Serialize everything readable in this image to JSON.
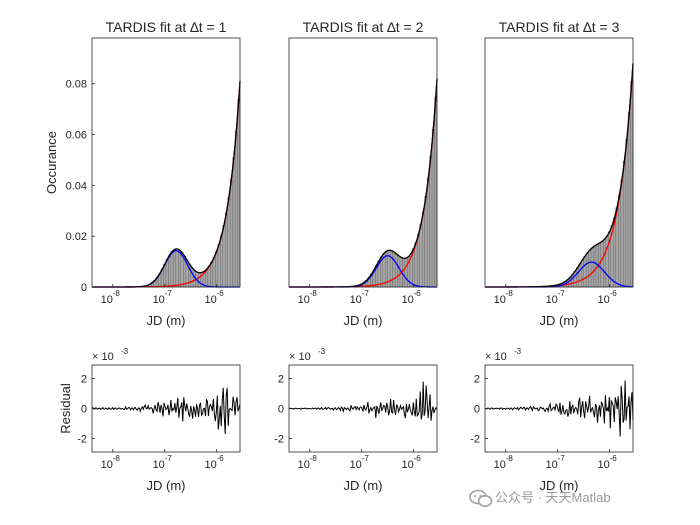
{
  "chart_data": [
    {
      "type": "histogram+line",
      "title": "TARDIS fit at ∆t = 1",
      "xlabel": "JD (m)",
      "ylabel": "Occurance",
      "xscale": "log",
      "xlim_exponent": [
        -8.4,
        -5.55
      ],
      "ylim": [
        0,
        0.098
      ],
      "yticks": [
        0,
        0.02,
        0.04,
        0.06,
        0.08
      ],
      "ytick_labels": [
        "0",
        "0.02",
        "0.04",
        "0.06",
        "0.08"
      ],
      "xtick_labels": [
        {
          "base": "10",
          "exp": "-8"
        },
        {
          "base": "10",
          "exp": "-7"
        },
        {
          "base": "10",
          "exp": "-6"
        }
      ],
      "xtick_exponents": [
        -8,
        -7,
        -6
      ],
      "components": {
        "blue_peak": {
          "center_log10": -6.78,
          "height": 0.0143,
          "sigma_log10": 0.22,
          "color": "#0000ff"
        },
        "red_tail": {
          "growth": 3.9,
          "color": "#ff0000"
        },
        "end_value": 0.081
      },
      "histogram_color": "#a6a6a6",
      "fit_color": "#000000",
      "grid": false
    },
    {
      "type": "histogram+line",
      "title": "TARDIS fit at ∆t = 2",
      "xlabel": "JD (m)",
      "ylabel": "",
      "xscale": "log",
      "xlim_exponent": [
        -8.4,
        -5.55
      ],
      "ylim": [
        0,
        0.098
      ],
      "xtick_labels": [
        {
          "base": "10",
          "exp": "-8"
        },
        {
          "base": "10",
          "exp": "-7"
        },
        {
          "base": "10",
          "exp": "-6"
        }
      ],
      "xtick_exponents": [
        -8,
        -7,
        -6
      ],
      "components": {
        "blue_peak": {
          "center_log10": -6.5,
          "height": 0.0123,
          "sigma_log10": 0.22,
          "color": "#0000ff"
        },
        "red_tail": {
          "growth": 3.9,
          "color": "#ff0000"
        },
        "end_value": 0.082
      },
      "histogram_color": "#a6a6a6",
      "fit_color": "#000000",
      "grid": false
    },
    {
      "type": "histogram+line",
      "title": "TARDIS fit at ∆t = 3",
      "xlabel": "JD (m)",
      "ylabel": "",
      "xscale": "log",
      "xlim_exponent": [
        -8.4,
        -5.55
      ],
      "ylim": [
        0,
        0.098
      ],
      "xtick_labels": [
        {
          "base": "10",
          "exp": "-8"
        },
        {
          "base": "10",
          "exp": "-7"
        },
        {
          "base": "10",
          "exp": "-6"
        }
      ],
      "xtick_exponents": [
        -8,
        -7,
        -6
      ],
      "components": {
        "blue_peak": {
          "center_log10": -6.35,
          "height": 0.0098,
          "sigma_log10": 0.25,
          "color": "#0000ff"
        },
        "red_tail": {
          "growth": 3.5,
          "color": "#ff0000"
        },
        "end_value": 0.088
      },
      "histogram_color": "#a6a6a6",
      "fit_color": "#000000",
      "grid": false
    },
    {
      "type": "line",
      "title": "",
      "xlabel": "JD (m)",
      "ylabel": "Residual",
      "xscale": "log",
      "xlim_exponent": [
        -8.4,
        -5.55
      ],
      "ylim": [
        -2.9,
        2.9
      ],
      "y_multiplier": {
        "base": "× 10",
        "exp": "-3"
      },
      "yticks": [
        -2,
        0,
        2
      ],
      "ytick_labels": [
        "-2",
        "0",
        "2"
      ],
      "xtick_labels": [
        {
          "base": "10",
          "exp": "-8"
        },
        {
          "base": "10",
          "exp": "-7"
        },
        {
          "base": "10",
          "exp": "-6"
        }
      ],
      "xtick_exponents": [
        -8,
        -7,
        -6
      ],
      "residual": {
        "x": [
          -8.4,
          -8.0,
          -7.6,
          -7.3,
          -7.1,
          -6.9,
          -6.7,
          -6.5,
          -6.3,
          -6.1,
          -5.95,
          -5.85,
          -5.75,
          -5.65,
          -5.55
        ],
        "amplitude": [
          0.05,
          0.07,
          0.12,
          0.3,
          0.45,
          0.6,
          0.9,
          0.7,
          0.6,
          0.9,
          1.4,
          2.6,
          1.8,
          1.5,
          0.8
        ]
      },
      "line_color": "#000000"
    },
    {
      "type": "line",
      "title": "",
      "xlabel": "JD (m)",
      "ylabel": "",
      "xscale": "log",
      "xlim_exponent": [
        -8.4,
        -5.55
      ],
      "ylim": [
        -2.9,
        2.9
      ],
      "y_multiplier": {
        "base": "× 10",
        "exp": "-3"
      },
      "yticks": [
        -2,
        0,
        2
      ],
      "ytick_labels": [
        "-2",
        "0",
        "2"
      ],
      "xtick_labels": [
        {
          "base": "10",
          "exp": "-8"
        },
        {
          "base": "10",
          "exp": "-7"
        },
        {
          "base": "10",
          "exp": "-6"
        }
      ],
      "xtick_exponents": [
        -8,
        -7,
        -6
      ],
      "residual": {
        "x": [
          -8.4,
          -8.0,
          -7.6,
          -7.3,
          -7.1,
          -6.9,
          -6.7,
          -6.5,
          -6.3,
          -6.1,
          -5.95,
          -5.85,
          -5.75,
          -5.65,
          -5.55
        ],
        "amplitude": [
          0.05,
          0.06,
          0.1,
          0.2,
          0.3,
          0.45,
          0.6,
          0.65,
          0.6,
          0.8,
          1.0,
          2.2,
          1.6,
          1.2,
          0.7
        ]
      },
      "line_color": "#000000"
    },
    {
      "type": "line",
      "title": "",
      "xlabel": "JD (m)",
      "ylabel": "",
      "xscale": "log",
      "xlim_exponent": [
        -8.4,
        -5.55
      ],
      "ylim": [
        -2.9,
        2.9
      ],
      "y_multiplier": {
        "base": "× 10",
        "exp": "-3"
      },
      "yticks": [
        -2,
        0,
        2
      ],
      "ytick_labels": [
        "-2",
        "0",
        "2"
      ],
      "xtick_labels": [
        {
          "base": "10",
          "exp": "-8"
        },
        {
          "base": "10",
          "exp": "-7"
        },
        {
          "base": "10",
          "exp": "-6"
        }
      ],
      "xtick_exponents": [
        -8,
        -7,
        -6
      ],
      "residual": {
        "x": [
          -8.4,
          -8.0,
          -7.6,
          -7.3,
          -7.1,
          -6.9,
          -6.7,
          -6.5,
          -6.3,
          -6.1,
          -5.95,
          -5.85,
          -5.75,
          -5.65,
          -5.55
        ],
        "amplitude": [
          0.05,
          0.07,
          0.12,
          0.25,
          0.4,
          0.55,
          0.7,
          0.9,
          1.0,
          1.2,
          1.5,
          2.0,
          2.2,
          1.5,
          1.6
        ]
      },
      "line_color": "#000000"
    }
  ],
  "watermark": {
    "text": "公众号 · 天天Matlab",
    "icon": "wechat-icon"
  }
}
